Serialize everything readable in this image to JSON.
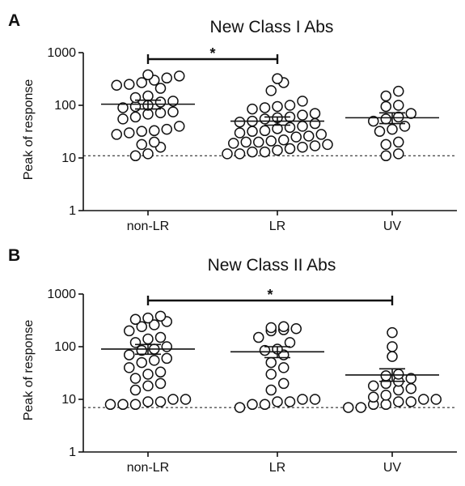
{
  "chart_data": [
    {
      "type": "scatter",
      "panel": "A",
      "title": "New Class I Abs",
      "ylabel": "Peak of response",
      "yscale": "log",
      "ylim": [
        1,
        1000
      ],
      "yticks": [
        "1",
        "10",
        "100",
        "1000"
      ],
      "categories": [
        "non-LR",
        "LR",
        "UV"
      ],
      "threshold": 11,
      "significance": [
        {
          "from": "non-LR",
          "to": "LR",
          "label": "*"
        }
      ],
      "groups": [
        {
          "category": "non-LR",
          "mean": 105,
          "sem_low": 85,
          "sem_high": 125,
          "values": [
            380,
            330,
            360,
            270,
            250,
            300,
            240,
            210,
            150,
            140,
            120,
            115,
            100,
            95,
            90,
            75,
            72,
            68,
            60,
            55,
            40,
            35,
            33,
            32,
            30,
            28,
            20,
            18,
            16,
            12,
            11
          ]
        },
        {
          "category": "LR",
          "mean": 50,
          "sem_low": 42,
          "sem_high": 60,
          "values": [
            320,
            270,
            190,
            120,
            100,
            95,
            90,
            85,
            70,
            65,
            60,
            58,
            55,
            50,
            48,
            45,
            40,
            38,
            36,
            33,
            32,
            30,
            28,
            26,
            25,
            22,
            21,
            20,
            20,
            19,
            18,
            17,
            16,
            15,
            14,
            13,
            13,
            12,
            12
          ]
        },
        {
          "category": "UV",
          "mean": 58,
          "sem_low": 45,
          "sem_high": 72,
          "values": [
            185,
            150,
            100,
            95,
            70,
            60,
            55,
            50,
            40,
            35,
            32,
            20,
            18,
            12,
            11
          ]
        }
      ]
    },
    {
      "type": "scatter",
      "panel": "B",
      "title": "New Class II  Abs",
      "ylabel": "Peak of response",
      "yscale": "log",
      "ylim": [
        1,
        1000
      ],
      "yticks": [
        "1",
        "10",
        "100",
        "1000"
      ],
      "categories": [
        "non-LR",
        "LR",
        "UV"
      ],
      "threshold": 7,
      "significance": [
        {
          "from": "non-LR",
          "to": "UV",
          "label": "*"
        }
      ],
      "groups": [
        {
          "category": "non-LR",
          "mean": 90,
          "sem_low": 72,
          "sem_high": 110,
          "values": [
            380,
            350,
            330,
            300,
            260,
            240,
            200,
            150,
            140,
            120,
            100,
            90,
            85,
            70,
            60,
            55,
            50,
            40,
            33,
            30,
            25,
            20,
            18,
            15,
            10,
            10,
            9,
            9,
            8,
            8,
            8
          ]
        },
        {
          "category": "LR",
          "mean": 80,
          "sem_low": 62,
          "sem_high": 100,
          "values": [
            240,
            230,
            220,
            210,
            200,
            150,
            120,
            90,
            85,
            70,
            50,
            40,
            30,
            20,
            15,
            10,
            10,
            9,
            9,
            8,
            8,
            7
          ]
        },
        {
          "category": "UV",
          "mean": 29,
          "sem_low": 22,
          "sem_high": 38,
          "values": [
            185,
            100,
            65,
            30,
            28,
            25,
            22,
            20,
            18,
            16,
            15,
            12,
            11,
            10,
            10,
            9,
            9,
            8,
            8,
            7,
            7
          ]
        }
      ]
    }
  ]
}
